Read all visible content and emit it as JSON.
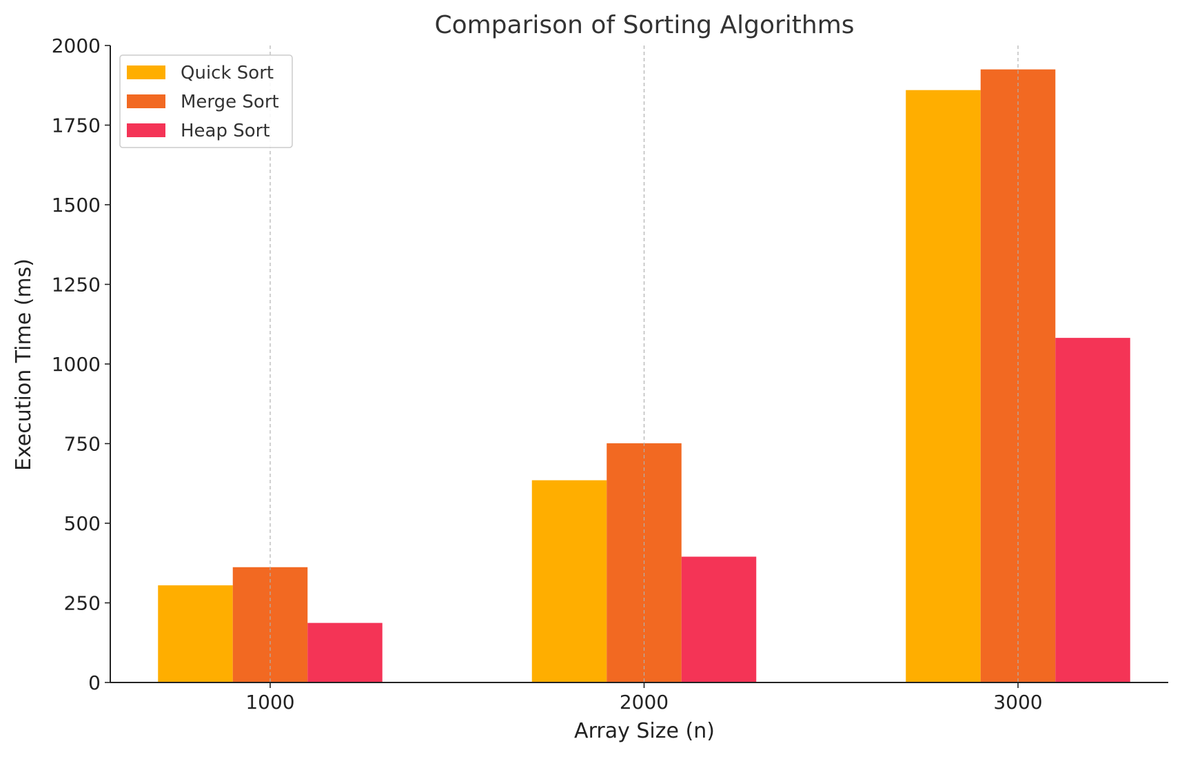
{
  "chart_data": {
    "type": "bar",
    "title": "Comparison of Sorting Algorithms",
    "xlabel": "Array Size (n)",
    "ylabel": "Execution Time (ms)",
    "categories": [
      "1000",
      "2000",
      "3000"
    ],
    "series": [
      {
        "name": "Quick Sort",
        "color": "#FFAE00",
        "values": [
          305,
          635,
          1860
        ]
      },
      {
        "name": "Merge Sort",
        "color": "#F26922",
        "values": [
          362,
          751,
          1925
        ]
      },
      {
        "name": "Heap Sort",
        "color": "#F43456",
        "values": [
          187,
          395,
          1082
        ]
      }
    ],
    "ylim": [
      0,
      2000
    ],
    "yticks": [
      0,
      250,
      500,
      750,
      1000,
      1250,
      1500,
      1750,
      2000
    ],
    "grid": "vertical dashed at categories",
    "legend_position": "top-left"
  }
}
